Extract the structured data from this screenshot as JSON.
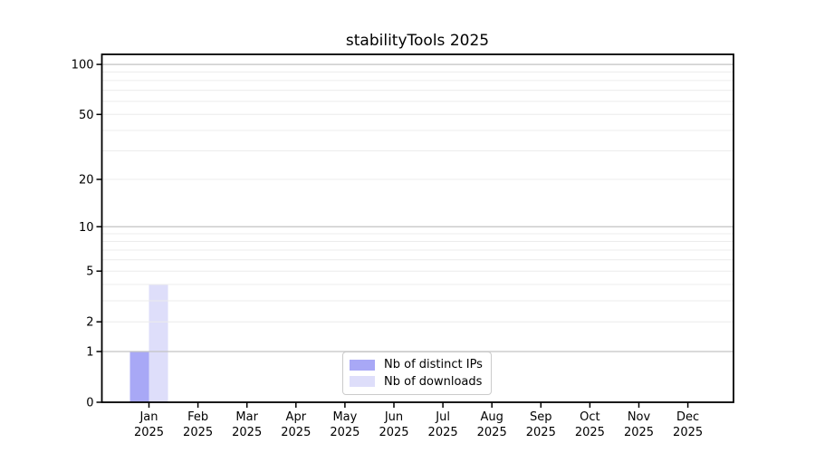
{
  "chart_data": {
    "type": "bar",
    "title": "stabilityTools 2025",
    "categories": [
      "Jan 2025",
      "Feb 2025",
      "Mar 2025",
      "Apr 2025",
      "May 2025",
      "Jun 2025",
      "Jul 2025",
      "Aug 2025",
      "Sep 2025",
      "Oct 2025",
      "Nov 2025",
      "Dec 2025"
    ],
    "series": [
      {
        "name": "Nb of distinct IPs",
        "color": "#a8a8f6",
        "values": [
          1,
          0,
          0,
          0,
          0,
          0,
          0,
          0,
          0,
          0,
          0,
          0
        ]
      },
      {
        "name": "Nb of downloads",
        "color": "#dedefa",
        "values": [
          4,
          0,
          0,
          0,
          0,
          0,
          0,
          0,
          0,
          0,
          0,
          0
        ]
      }
    ],
    "xlabel": "",
    "ylabel": "",
    "y_scale": "log1p",
    "y_ticks": [
      0,
      1,
      2,
      5,
      10,
      20,
      50,
      100
    ],
    "ylim": [
      0,
      115
    ],
    "grid": {
      "major_values": [
        1,
        10,
        100
      ],
      "minor_values": [
        2,
        3,
        4,
        5,
        6,
        7,
        8,
        9,
        20,
        30,
        40,
        50,
        60,
        70,
        80,
        90
      ],
      "major_color": "#c3c3c3",
      "minor_color": "#ececec"
    },
    "legend": {
      "position": "lower-center"
    },
    "axis_color": "#000000",
    "background_color": "#ffffff"
  }
}
